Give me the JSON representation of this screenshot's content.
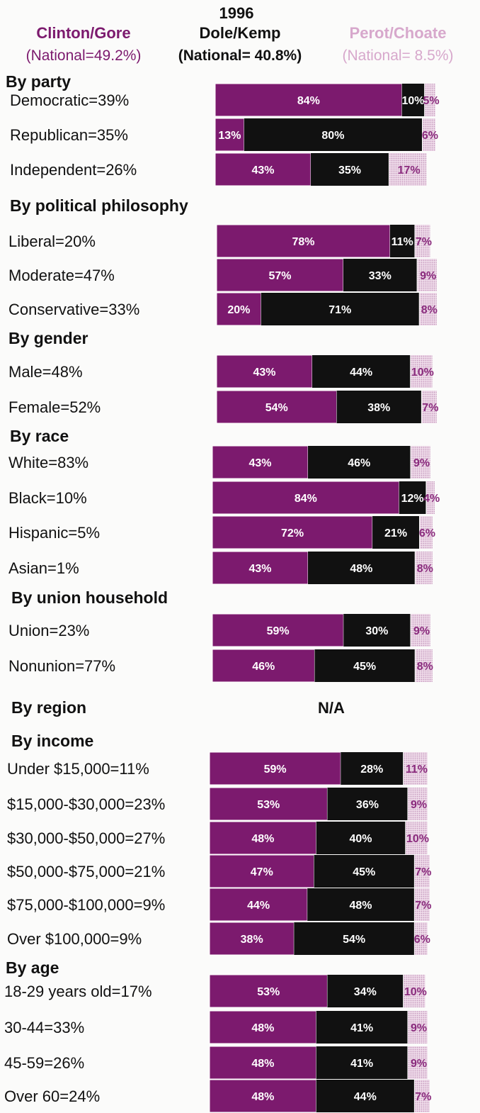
{
  "colors": {
    "clinton": "#7c1a6e",
    "dole": "#111111",
    "perot": "#e7c6de",
    "perot_text": "#8a2b7d",
    "perot_header": "#d7a8cc"
  },
  "header": {
    "year": "1996",
    "candidates": [
      {
        "name": "Clinton/Gore",
        "national": "(National=49.2%)"
      },
      {
        "name": "Dole/Kemp",
        "national": "(National= 40.8%)"
      },
      {
        "name": "Perot/Choate",
        "national": "(National= 8.5%)"
      }
    ]
  },
  "chart_data": {
    "type": "bar",
    "orientation": "horizontal",
    "stacked": true,
    "series_names": [
      "Clinton/Gore",
      "Dole/Kemp",
      "Perot/Choate"
    ],
    "sections": [
      {
        "title": "By party",
        "rows": [
          {
            "label": "Democratic=39%",
            "values": [
              84,
              10,
              5
            ]
          },
          {
            "label": "Republican=35%",
            "values": [
              13,
              80,
              6
            ]
          },
          {
            "label": "Independent=26%",
            "values": [
              43,
              35,
              17
            ]
          }
        ]
      },
      {
        "title": "By political philosophy",
        "rows": [
          {
            "label": "Liberal=20%",
            "values": [
              78,
              11,
              7
            ]
          },
          {
            "label": "Moderate=47%",
            "values": [
              57,
              33,
              9
            ]
          },
          {
            "label": "Conservative=33%",
            "values": [
              20,
              71,
              8
            ]
          }
        ]
      },
      {
        "title": "By gender",
        "rows": [
          {
            "label": "Male=48%",
            "values": [
              43,
              44,
              10
            ]
          },
          {
            "label": "Female=52%",
            "values": [
              54,
              38,
              7
            ]
          }
        ]
      },
      {
        "title": "By race",
        "rows": [
          {
            "label": "White=83%",
            "values": [
              43,
              46,
              9
            ]
          },
          {
            "label": "Black=10%",
            "values": [
              84,
              12,
              4
            ]
          },
          {
            "label": "Hispanic=5%",
            "values": [
              72,
              21,
              6
            ]
          },
          {
            "label": "Asian=1%",
            "values": [
              43,
              48,
              8
            ]
          }
        ]
      },
      {
        "title": "By union household",
        "rows": [
          {
            "label": "Union=23%",
            "values": [
              59,
              30,
              9
            ]
          },
          {
            "label": "Nonunion=77%",
            "values": [
              46,
              45,
              8
            ]
          }
        ]
      },
      {
        "title": "By region",
        "na": "N/A",
        "rows": []
      },
      {
        "title": "By income",
        "rows": [
          {
            "label": "Under $15,000=11%",
            "values": [
              59,
              28,
              11
            ]
          },
          {
            "label": "$15,000-$30,000=23%",
            "values": [
              53,
              36,
              9
            ]
          },
          {
            "label": "$30,000-$50,000=27%",
            "values": [
              48,
              40,
              10
            ]
          },
          {
            "label": "$50,000-$75,000=21%",
            "values": [
              47,
              45,
              7
            ]
          },
          {
            "label": "$75,000-$100,000=9%",
            "values": [
              44,
              48,
              7
            ]
          },
          {
            "label": "Over $100,000=9%",
            "values": [
              38,
              54,
              6
            ]
          }
        ]
      },
      {
        "title": "By age",
        "rows": [
          {
            "label": "18-29 years old=17%",
            "values": [
              53,
              34,
              10
            ]
          },
          {
            "label": "30-44=33%",
            "values": [
              48,
              41,
              9
            ]
          },
          {
            "label": "45-59=26%",
            "values": [
              48,
              41,
              9
            ]
          },
          {
            "label": "Over 60=24%",
            "values": [
              48,
              44,
              7
            ]
          }
        ]
      }
    ]
  }
}
